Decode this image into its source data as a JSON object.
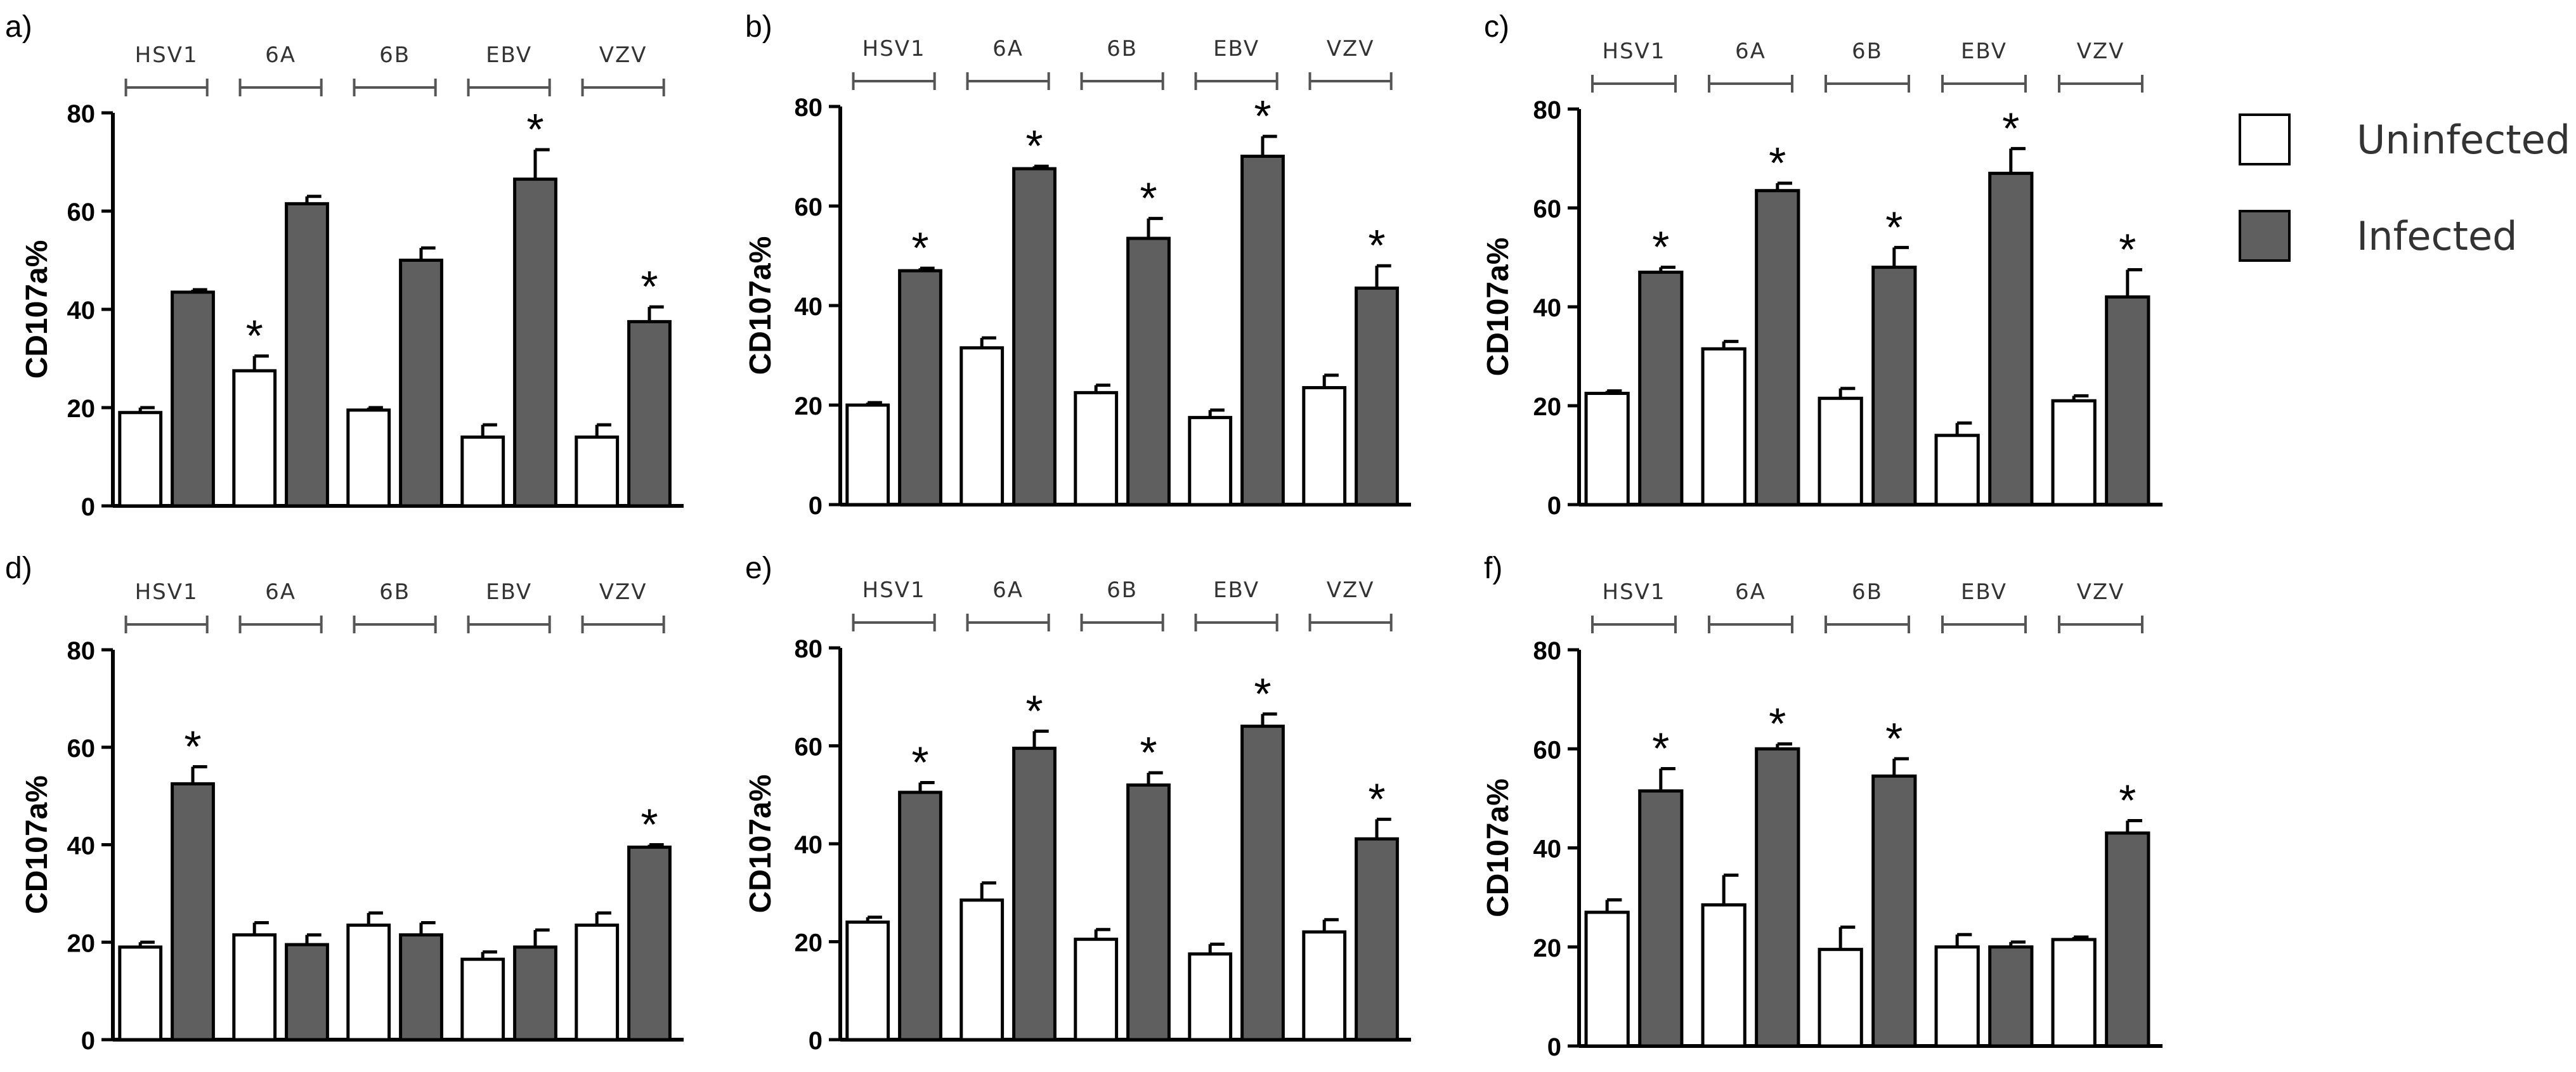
{
  "figure": {
    "colors": {
      "uninfected": "#ffffff",
      "infected": "#5f5f5f",
      "axis": "#000000",
      "bracket": "#555555"
    }
  },
  "legend": {
    "uninfected_label": "Uninfected",
    "infected_label": "Infected"
  },
  "chart_data": [
    {
      "type": "bar",
      "panel_label": "a)",
      "ylabel": "CD107a%",
      "ylim": [
        0,
        80
      ],
      "yticks": [
        "0",
        "20",
        "40",
        "60",
        "80"
      ],
      "groups": [
        "HSV1",
        "6A",
        "6B",
        "EBV",
        "VZV"
      ],
      "series": [
        {
          "name": "Uninfected",
          "values": [
            19,
            27.5,
            19.5,
            14,
            14
          ],
          "errors": [
            1,
            3,
            0.5,
            2.5,
            2.5
          ]
        },
        {
          "name": "Infected",
          "values": [
            43.5,
            61.5,
            50,
            66.5,
            37.5
          ],
          "errors": [
            0.5,
            1.5,
            2.5,
            6,
            3
          ]
        }
      ],
      "significance": [
        "",
        "",
        "*",
        "",
        "",
        "",
        "",
        "*",
        "",
        "*"
      ]
    },
    {
      "type": "bar",
      "panel_label": "b)",
      "ylabel": "CD107a%",
      "ylim": [
        0,
        80
      ],
      "yticks": [
        "0",
        "20",
        "40",
        "60",
        "80"
      ],
      "groups": [
        "HSV1",
        "6A",
        "6B",
        "EBV",
        "VZV"
      ],
      "series": [
        {
          "name": "Uninfected",
          "values": [
            20,
            31.5,
            22.5,
            17.5,
            23.5
          ],
          "errors": [
            0.5,
            2,
            1.5,
            1.5,
            2.5
          ]
        },
        {
          "name": "Infected",
          "values": [
            47,
            67.5,
            53.5,
            70,
            43.5
          ],
          "errors": [
            0.5,
            0.5,
            4,
            4,
            4.5
          ]
        }
      ],
      "significance": [
        "",
        "*",
        "",
        "*",
        "",
        "*",
        "",
        "*",
        "",
        "*"
      ]
    },
    {
      "type": "bar",
      "panel_label": "c)",
      "ylabel": "CD107a%",
      "ylim": [
        0,
        80
      ],
      "yticks": [
        "0",
        "20",
        "40",
        "60",
        "80"
      ],
      "groups": [
        "HSV1",
        "6A",
        "6B",
        "EBV",
        "VZV"
      ],
      "series": [
        {
          "name": "Uninfected",
          "values": [
            22.5,
            31.5,
            21.5,
            14,
            21
          ],
          "errors": [
            0.5,
            1.5,
            2,
            2.5,
            1
          ]
        },
        {
          "name": "Infected",
          "values": [
            47,
            63.5,
            48,
            67,
            42
          ],
          "errors": [
            1,
            1.5,
            4,
            5,
            5.5
          ]
        }
      ],
      "significance": [
        "",
        "*",
        "",
        "*",
        "",
        "*",
        "",
        "*",
        "",
        "*"
      ]
    },
    {
      "type": "bar",
      "panel_label": "d)",
      "ylabel": "CD107a%",
      "ylim": [
        0,
        80
      ],
      "yticks": [
        "0",
        "20",
        "40",
        "60",
        "80"
      ],
      "groups": [
        "HSV1",
        "6A",
        "6B",
        "EBV",
        "VZV"
      ],
      "series": [
        {
          "name": "Uninfected",
          "values": [
            19,
            21.5,
            23.5,
            16.5,
            23.5
          ],
          "errors": [
            1,
            2.5,
            2.5,
            1.5,
            2.5
          ]
        },
        {
          "name": "Infected",
          "values": [
            52.5,
            19.5,
            21.5,
            19,
            39.5
          ],
          "errors": [
            3.5,
            2,
            2.5,
            3.5,
            0.5
          ]
        }
      ],
      "significance": [
        "",
        "*",
        "",
        "",
        "",
        "",
        "",
        "",
        "",
        "*"
      ]
    },
    {
      "type": "bar",
      "panel_label": "e)",
      "ylabel": "CD107a%",
      "ylim": [
        0,
        80
      ],
      "yticks": [
        "0",
        "20",
        "40",
        "60",
        "80"
      ],
      "groups": [
        "HSV1",
        "6A",
        "6B",
        "EBV",
        "VZV"
      ],
      "series": [
        {
          "name": "Uninfected",
          "values": [
            24,
            28.5,
            20.5,
            17.5,
            22
          ],
          "errors": [
            1,
            3.5,
            2,
            2,
            2.5
          ]
        },
        {
          "name": "Infected",
          "values": [
            50.5,
            59.5,
            52,
            64,
            41
          ],
          "errors": [
            2,
            3.5,
            2.5,
            2.5,
            4
          ]
        }
      ],
      "significance": [
        "",
        "*",
        "",
        "*",
        "",
        "*",
        "",
        "*",
        "",
        "*"
      ]
    },
    {
      "type": "bar",
      "panel_label": "f)",
      "ylabel": "CD107a%",
      "ylim": [
        0,
        80
      ],
      "yticks": [
        "0",
        "20",
        "40",
        "60",
        "80"
      ],
      "groups": [
        "HSV1",
        "6A",
        "6B",
        "EBV",
        "VZV"
      ],
      "series": [
        {
          "name": "Uninfected",
          "values": [
            27,
            28.5,
            19.5,
            20,
            21.5
          ],
          "errors": [
            2.5,
            6,
            4.5,
            2.5,
            0.5
          ]
        },
        {
          "name": "Infected",
          "values": [
            51.5,
            60,
            54.5,
            20,
            43
          ],
          "errors": [
            4.5,
            1,
            3.5,
            1,
            2.5
          ]
        }
      ],
      "significance": [
        "",
        "*",
        "",
        "*",
        "",
        "*",
        "",
        "",
        "",
        "*"
      ]
    }
  ]
}
